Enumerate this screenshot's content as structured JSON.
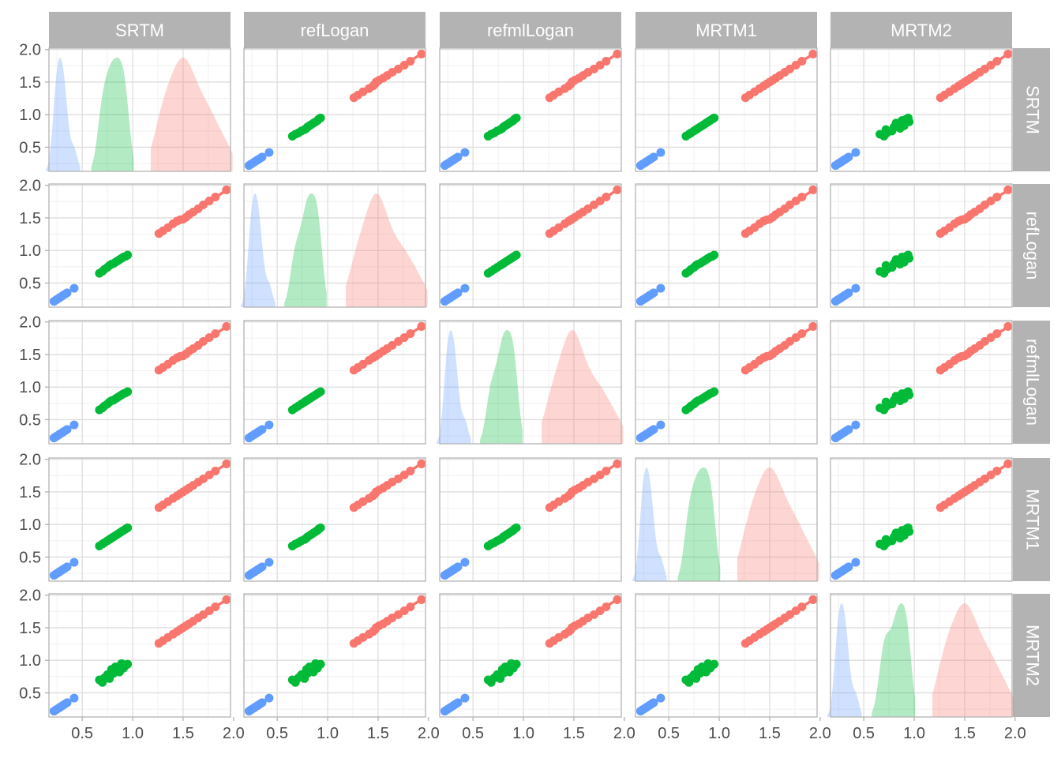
{
  "chart_data": {
    "type": "scatter",
    "layout": "pairs-matrix",
    "variables": [
      "SRTM",
      "refLogan",
      "refmlLogan",
      "MRTM1",
      "MRTM2"
    ],
    "xticks": [
      "0.5",
      "1.0",
      "1.5",
      "2.0"
    ],
    "yticks": [
      "0.5",
      "1.0",
      "1.5",
      "2.0"
    ],
    "xlim": [
      0.17,
      1.97
    ],
    "ylim": [
      0.13,
      2.02
    ],
    "grid": true,
    "legend": "none",
    "colors": {
      "high": "#F8766D",
      "mid": "#00BA38",
      "low": "#619CFF"
    },
    "groups": [
      {
        "color_key": "low",
        "values": {
          "SRTM": [
            0.22,
            0.24,
            0.25,
            0.27,
            0.28,
            0.3,
            0.31,
            0.33,
            0.35,
            0.42
          ],
          "refLogan": [
            0.22,
            0.24,
            0.25,
            0.27,
            0.28,
            0.3,
            0.31,
            0.33,
            0.35,
            0.42
          ],
          "refmlLogan": [
            0.22,
            0.24,
            0.25,
            0.27,
            0.28,
            0.3,
            0.31,
            0.33,
            0.35,
            0.42
          ],
          "MRTM1": [
            0.22,
            0.24,
            0.25,
            0.27,
            0.28,
            0.3,
            0.31,
            0.33,
            0.35,
            0.42
          ],
          "MRTM2": [
            0.22,
            0.24,
            0.25,
            0.27,
            0.28,
            0.3,
            0.31,
            0.33,
            0.35,
            0.42
          ]
        }
      },
      {
        "color_key": "mid",
        "values": {
          "SRTM": [
            0.67,
            0.7,
            0.72,
            0.75,
            0.77,
            0.79,
            0.81,
            0.83,
            0.85,
            0.87,
            0.89,
            0.91,
            0.93,
            0.95
          ],
          "refLogan": [
            0.65,
            0.68,
            0.71,
            0.74,
            0.77,
            0.79,
            0.8,
            0.82,
            0.84,
            0.86,
            0.88,
            0.9,
            0.91,
            0.93
          ],
          "refmlLogan": [
            0.65,
            0.68,
            0.71,
            0.74,
            0.77,
            0.79,
            0.8,
            0.82,
            0.84,
            0.86,
            0.88,
            0.9,
            0.91,
            0.93
          ],
          "MRTM1": [
            0.67,
            0.7,
            0.72,
            0.75,
            0.77,
            0.79,
            0.81,
            0.83,
            0.85,
            0.87,
            0.89,
            0.91,
            0.93,
            0.95
          ],
          "MRTM2": [
            0.7,
            0.66,
            0.73,
            0.78,
            0.72,
            0.86,
            0.8,
            0.9,
            0.84,
            0.82,
            0.95,
            0.88,
            0.92,
            0.94
          ]
        }
      },
      {
        "color_key": "high",
        "values": {
          "SRTM": [
            1.26,
            1.3,
            1.35,
            1.4,
            1.44,
            1.47,
            1.5,
            1.53,
            1.56,
            1.6,
            1.65,
            1.7,
            1.76,
            1.82,
            1.93
          ],
          "refLogan": [
            1.26,
            1.3,
            1.35,
            1.41,
            1.45,
            1.47,
            1.48,
            1.51,
            1.55,
            1.59,
            1.64,
            1.7,
            1.76,
            1.82,
            1.93
          ],
          "refmlLogan": [
            1.26,
            1.3,
            1.35,
            1.41,
            1.45,
            1.47,
            1.48,
            1.51,
            1.55,
            1.59,
            1.64,
            1.7,
            1.76,
            1.82,
            1.93
          ],
          "MRTM1": [
            1.26,
            1.3,
            1.35,
            1.4,
            1.44,
            1.47,
            1.5,
            1.53,
            1.56,
            1.6,
            1.65,
            1.7,
            1.76,
            1.82,
            1.93
          ],
          "MRTM2": [
            1.26,
            1.3,
            1.35,
            1.4,
            1.44,
            1.47,
            1.5,
            1.53,
            1.56,
            1.6,
            1.65,
            1.7,
            1.76,
            1.82,
            1.93
          ]
        }
      }
    ]
  }
}
